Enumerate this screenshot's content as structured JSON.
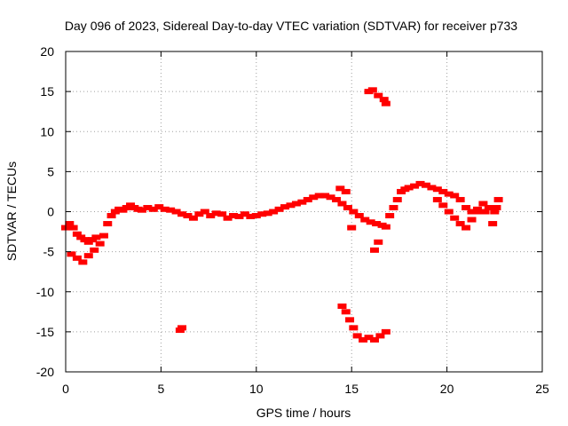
{
  "chart_data": {
    "type": "scatter",
    "title": "Day 096 of 2023, Sidereal Day-to-day VTEC variation (SDTVAR) for receiver p733",
    "xlabel": "GPS time / hours",
    "ylabel": "SDTVAR / TECUs",
    "xlim": [
      0,
      25
    ],
    "ylim": [
      -20,
      20
    ],
    "xticks": [
      0,
      5,
      10,
      15,
      20,
      25
    ],
    "yticks": [
      -20,
      -15,
      -10,
      -5,
      0,
      5,
      10,
      15,
      20
    ],
    "xtick_labels": [
      "0",
      "5",
      "10",
      "15",
      "20",
      "25"
    ],
    "ytick_labels": [
      "-20",
      "-15",
      "-10",
      "-5",
      "0",
      "5",
      "10",
      "15",
      "20"
    ],
    "grid": true,
    "marker_color": "#ff0000",
    "series": [
      {
        "name": "SDTVAR",
        "x": [
          0.0,
          0.2,
          0.4,
          0.6,
          0.8,
          1.0,
          1.2,
          1.4,
          1.6,
          0.3,
          0.6,
          0.9,
          1.2,
          1.5,
          1.8,
          2.0,
          2.2,
          2.4,
          2.6,
          2.8,
          3.0,
          3.2,
          3.4,
          3.6,
          3.8,
          4.0,
          4.3,
          4.6,
          4.9,
          5.2,
          5.5,
          5.8,
          6.1,
          6.4,
          6.7,
          7.0,
          7.3,
          7.6,
          7.9,
          8.2,
          8.5,
          8.8,
          9.1,
          9.4,
          9.7,
          10.0,
          10.3,
          10.6,
          10.9,
          11.2,
          11.5,
          11.8,
          12.1,
          12.4,
          12.7,
          13.0,
          13.3,
          13.6,
          13.9,
          14.2,
          14.5,
          14.8,
          15.1,
          15.4,
          15.7,
          16.0,
          16.3,
          16.6,
          16.8,
          14.4,
          14.7,
          15.0,
          14.5,
          14.7,
          14.9,
          15.1,
          15.3,
          15.6,
          15.9,
          16.2,
          16.5,
          16.8,
          15.9,
          16.1,
          16.4,
          16.7,
          16.8,
          16.2,
          16.4,
          6.0,
          6.1,
          17.0,
          17.2,
          17.4,
          17.6,
          17.8,
          18.0,
          18.3,
          18.6,
          18.9,
          19.2,
          19.5,
          19.8,
          20.1,
          20.4,
          20.7,
          21.0,
          21.3,
          21.6,
          21.9,
          22.2,
          22.5,
          22.7,
          19.5,
          19.8,
          20.1,
          20.4,
          20.7,
          21.0,
          21.3,
          21.6,
          22.0,
          22.4,
          22.6
        ],
        "y": [
          -2.0,
          -1.5,
          -2.0,
          -2.8,
          -3.2,
          -3.5,
          -3.8,
          -3.5,
          -3.2,
          -5.3,
          -5.8,
          -6.3,
          -5.5,
          -4.8,
          -4.0,
          -3.0,
          -1.5,
          -0.5,
          0.0,
          0.3,
          0.2,
          0.5,
          0.8,
          0.5,
          0.3,
          0.2,
          0.5,
          0.3,
          0.6,
          0.3,
          0.2,
          0.0,
          -0.3,
          -0.5,
          -0.8,
          -0.3,
          0.0,
          -0.5,
          -0.2,
          -0.3,
          -0.8,
          -0.5,
          -0.6,
          -0.3,
          -0.6,
          -0.5,
          -0.3,
          -0.2,
          0.0,
          0.3,
          0.6,
          0.8,
          1.0,
          1.2,
          1.5,
          1.8,
          2.0,
          2.0,
          1.8,
          1.5,
          1.0,
          0.5,
          0.0,
          -0.5,
          -1.0,
          -1.3,
          -1.5,
          -1.7,
          -1.9,
          2.9,
          2.5,
          -2.0,
          -11.8,
          -12.5,
          -13.5,
          -14.5,
          -15.5,
          -16.0,
          -15.7,
          -16.0,
          -15.5,
          -15.0,
          15.0,
          15.2,
          14.5,
          14.0,
          13.5,
          -4.8,
          -3.8,
          -14.8,
          -14.5,
          -0.5,
          0.5,
          1.5,
          2.5,
          2.8,
          3.0,
          3.2,
          3.5,
          3.3,
          3.0,
          2.8,
          2.5,
          2.2,
          2.0,
          1.5,
          0.5,
          0.0,
          0.3,
          1.0,
          0.5,
          0.0,
          1.5,
          1.5,
          0.8,
          0.0,
          -0.8,
          -1.5,
          -2.0,
          -1.0,
          0.0,
          0.0,
          -1.5,
          0.5
        ]
      }
    ]
  }
}
